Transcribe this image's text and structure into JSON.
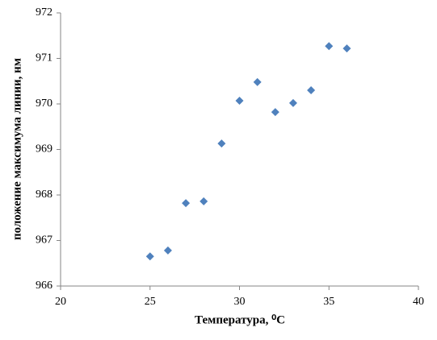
{
  "chart_data": {
    "type": "scatter",
    "xlabel": "Температура, ⁰C",
    "ylabel": "положение максимума линии, нм",
    "x": [
      25,
      26,
      27,
      28,
      29,
      30,
      31,
      32,
      33,
      34,
      35,
      36
    ],
    "series": [
      {
        "color": "#4f81bd",
        "values": [
          966.65,
          966.78,
          967.82,
          967.86,
          969.13,
          970.07,
          970.48,
          969.82,
          970.02,
          970.3,
          971.27,
          971.22
        ]
      }
    ],
    "xlim": [
      20,
      40
    ],
    "xticks": [
      20,
      25,
      30,
      35,
      40
    ],
    "ylim": [
      966,
      972
    ],
    "yticks": [
      966,
      967,
      968,
      969,
      970,
      971,
      972
    ],
    "grid": false
  }
}
